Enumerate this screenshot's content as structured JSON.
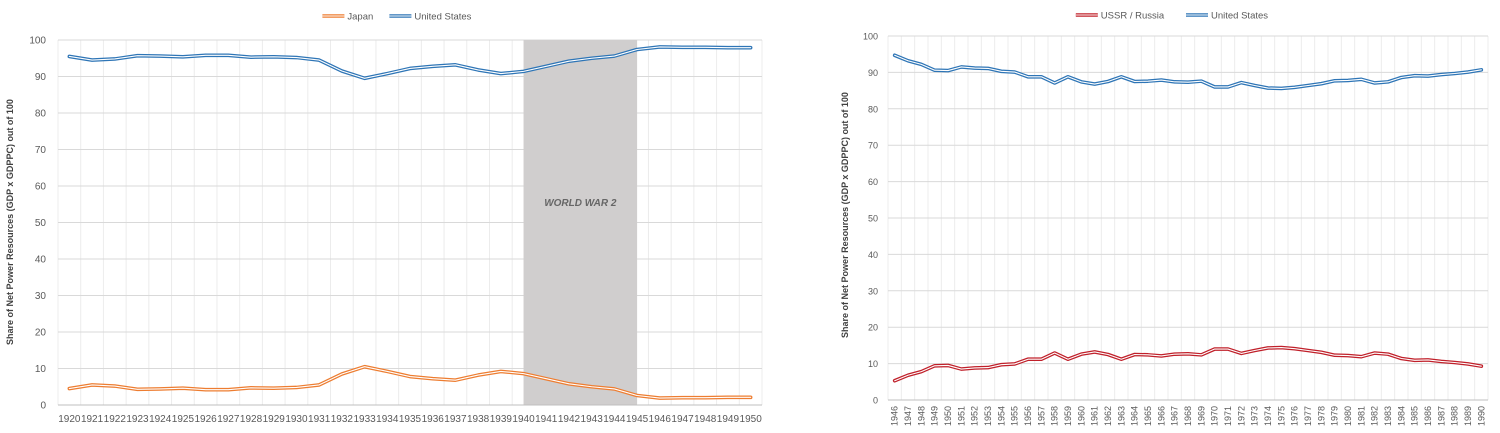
{
  "chart_data": [
    {
      "type": "line",
      "ylabel": "Share of Net Power Resources (GDP x GDPPC) out of 100",
      "xlabel": "",
      "ylim": [
        0,
        100
      ],
      "yticks": [
        0,
        10,
        20,
        30,
        40,
        50,
        60,
        70,
        80,
        90,
        100
      ],
      "legend_position": "top-center",
      "grid": true,
      "x": [
        "1920",
        "1921",
        "1922",
        "1923",
        "1924",
        "1925",
        "1926",
        "1927",
        "1928",
        "1929",
        "1930",
        "1931",
        "1932",
        "1933",
        "1934",
        "1935",
        "1936",
        "1937",
        "1938",
        "1939",
        "1940",
        "1941",
        "1942",
        "1943",
        "1944",
        "1945",
        "1946",
        "1947",
        "1948",
        "1949",
        "1950"
      ],
      "series": [
        {
          "name": "Japan",
          "color": "#ED7D31",
          "values": [
            4.5,
            5.5,
            5.2,
            4.3,
            4.4,
            4.6,
            4.2,
            4.2,
            4.7,
            4.6,
            4.8,
            5.5,
            8.5,
            10.5,
            9.2,
            7.8,
            7.2,
            6.8,
            8.2,
            9.2,
            8.6,
            7.2,
            5.8,
            5.0,
            4.4,
            2.6,
            1.9,
            2.0,
            2.0,
            2.1,
            2.1
          ]
        },
        {
          "name": "United States",
          "color": "#2E75B6",
          "values": [
            95.5,
            94.5,
            94.8,
            95.7,
            95.6,
            95.4,
            95.8,
            95.8,
            95.3,
            95.4,
            95.2,
            94.5,
            91.5,
            89.5,
            90.8,
            92.2,
            92.8,
            93.2,
            91.8,
            90.8,
            91.4,
            92.8,
            94.2,
            95.0,
            95.6,
            97.4,
            98.1,
            98.0,
            98.0,
            97.9,
            97.9
          ]
        }
      ],
      "shaded_region": {
        "from": "1940",
        "to": "1945",
        "label": "WORLD WAR 2",
        "color": "#D0CECE"
      }
    },
    {
      "type": "line",
      "ylabel": "Share of Net Power Resources (GDP x GDPPC) out of 100",
      "xlabel": "",
      "ylim": [
        0,
        100
      ],
      "yticks": [
        0,
        10,
        20,
        30,
        40,
        50,
        60,
        70,
        80,
        90,
        100
      ],
      "legend_position": "top-center",
      "grid": true,
      "x": [
        "1946",
        "1947",
        "1948",
        "1949",
        "1950",
        "1951",
        "1952",
        "1953",
        "1954",
        "1955",
        "1956",
        "1957",
        "1958",
        "1959",
        "1960",
        "1961",
        "1962",
        "1963",
        "1964",
        "1965",
        "1966",
        "1967",
        "1968",
        "1969",
        "1970",
        "1971",
        "1972",
        "1973",
        "1974",
        "1975",
        "1976",
        "1977",
        "1978",
        "1979",
        "1980",
        "1981",
        "1982",
        "1983",
        "1984",
        "1985",
        "1986",
        "1987",
        "1988",
        "1989",
        "1990"
      ],
      "series": [
        {
          "name": "USSR / Russia",
          "color": "#C0202A",
          "values": [
            5.3,
            6.8,
            7.8,
            9.4,
            9.5,
            8.5,
            8.8,
            8.9,
            9.7,
            9.9,
            11.2,
            11.2,
            12.9,
            11.2,
            12.6,
            13.2,
            12.5,
            11.2,
            12.5,
            12.4,
            12.1,
            12.6,
            12.7,
            12.4,
            14.0,
            14.0,
            12.8,
            13.6,
            14.3,
            14.4,
            14.1,
            13.6,
            13.1,
            12.3,
            12.2,
            11.9,
            12.9,
            12.6,
            11.4,
            10.9,
            11.0,
            10.6,
            10.3,
            9.9,
            9.3
          ]
        },
        {
          "name": "United States",
          "color": "#2E75B6",
          "values": [
            94.7,
            93.2,
            92.2,
            90.6,
            90.5,
            91.5,
            91.2,
            91.1,
            90.3,
            90.1,
            88.8,
            88.8,
            87.1,
            88.8,
            87.4,
            86.8,
            87.5,
            88.8,
            87.5,
            87.6,
            87.9,
            87.4,
            87.3,
            87.6,
            86.0,
            86.0,
            87.2,
            86.4,
            85.7,
            85.6,
            85.9,
            86.4,
            86.9,
            87.7,
            87.8,
            88.1,
            87.1,
            87.4,
            88.6,
            89.1,
            89.0,
            89.4,
            89.7,
            90.1,
            90.7
          ]
        }
      ]
    }
  ]
}
